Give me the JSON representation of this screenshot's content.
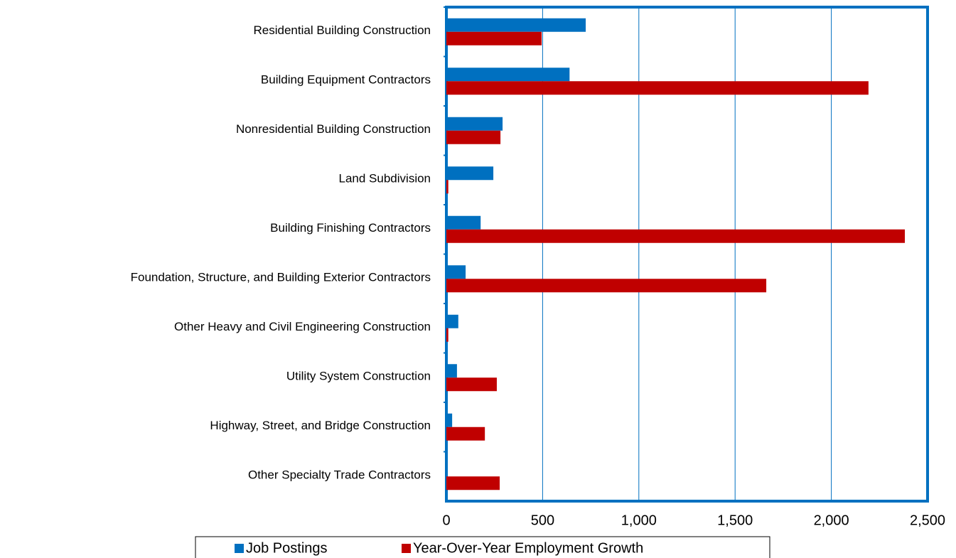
{
  "chart_data": {
    "type": "bar",
    "orientation": "horizontal",
    "categories": [
      "Residential Building Construction",
      "Building Equipment Contractors",
      "Nonresidential Building Construction",
      "Land Subdivision",
      "Building Finishing Contractors",
      "Foundation, Structure, and Building Exterior Contractors",
      "Other Heavy and Civil Engineering Construction",
      "Utility System Construction",
      "Highway, Street, and Bridge Construction",
      "Other Specialty Trade Contractors"
    ],
    "series": [
      {
        "name": "Job Postings",
        "color": "#0070c0",
        "values": [
          724,
          640,
          292,
          244,
          178,
          100,
          62,
          55,
          30,
          0
        ]
      },
      {
        "name": "Year-Over-Year Employment Growth",
        "color": "#c00000",
        "values": [
          495,
          2193,
          281,
          10,
          2382,
          1662,
          10,
          262,
          200,
          277
        ]
      }
    ],
    "xlim": [
      0,
      2500
    ],
    "xticks": [
      0,
      500,
      {
        "value": 1000,
        "label": "1,000"
      },
      {
        "value": 1500,
        "label": "1,500"
      },
      {
        "value": 2000,
        "label": "2,000"
      },
      {
        "value": 2500,
        "label": "2,500"
      }
    ],
    "grid": true,
    "legend": "bottom"
  }
}
